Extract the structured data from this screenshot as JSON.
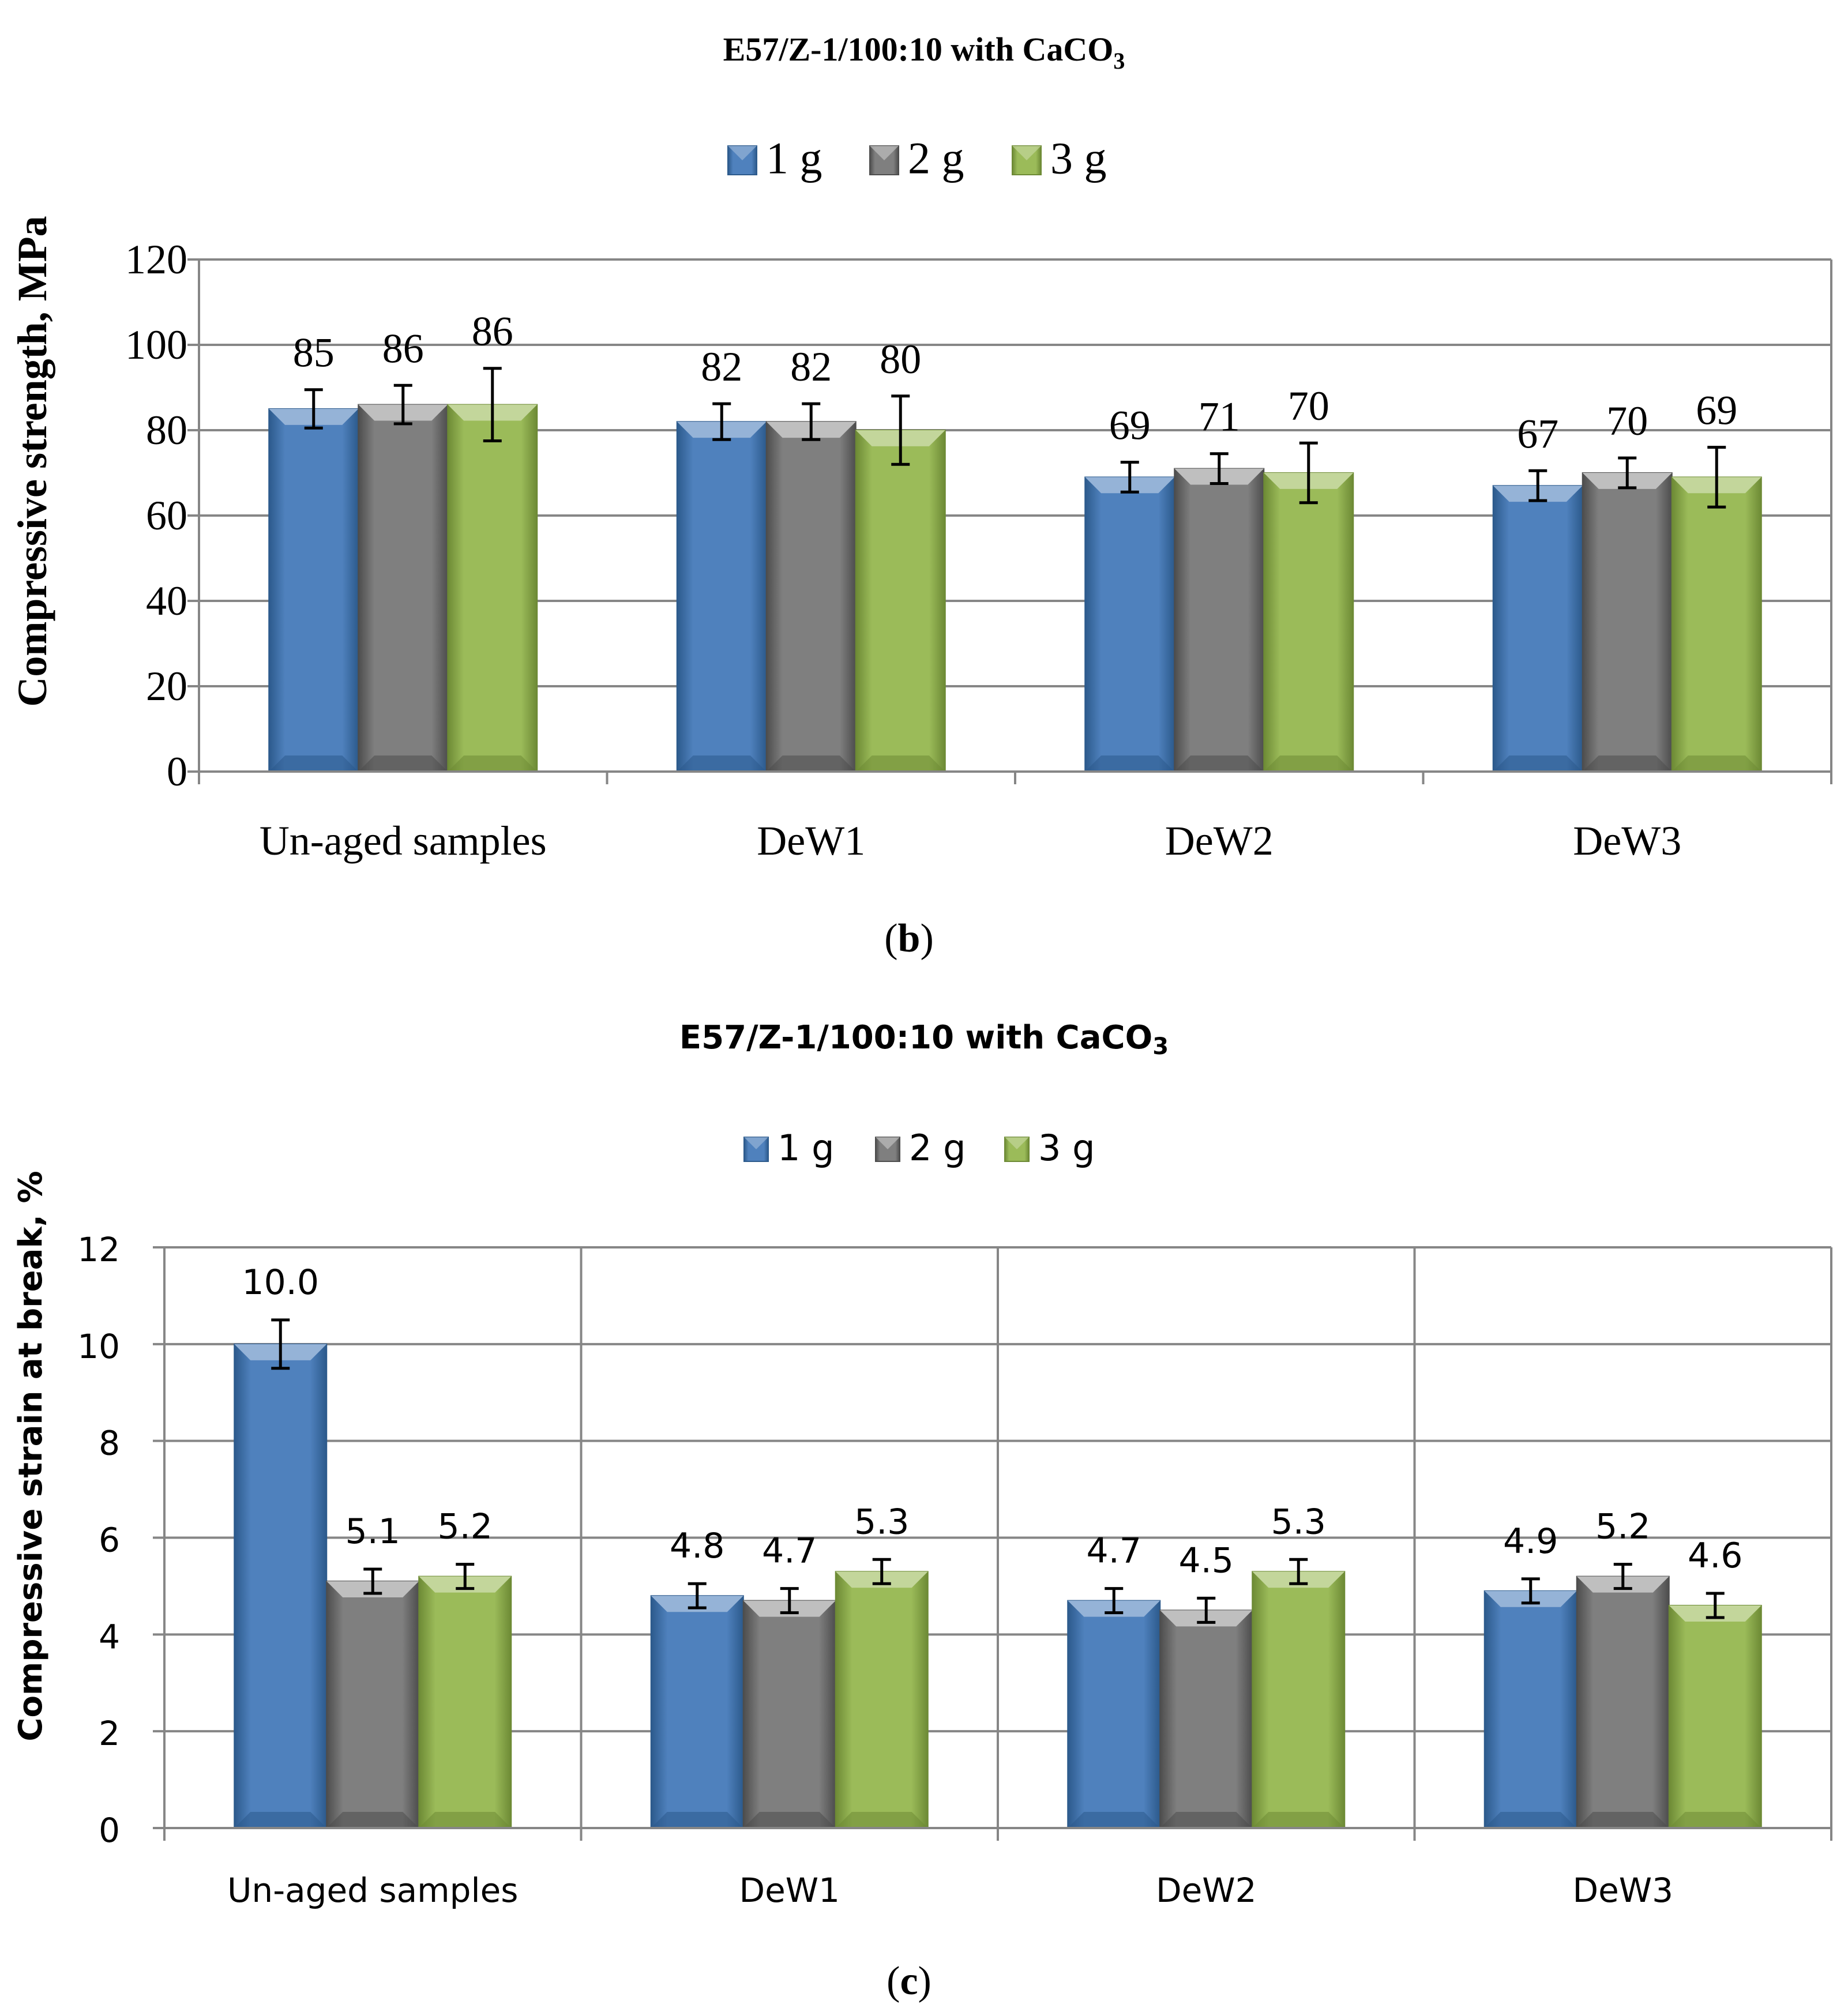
{
  "chart_data": [
    {
      "panel": "b",
      "type": "bar",
      "title": "E57/Z-1/100:10 with CaCO",
      "title_subscript": "3",
      "caption_open": "(",
      "caption_letter": "b",
      "caption_close": ")",
      "xlabel": "",
      "ylabel": "Compressive strength, MPa",
      "ylim": [
        0,
        120
      ],
      "yticks": [
        0,
        20,
        40,
        60,
        80,
        100,
        120
      ],
      "grid": "horizontal",
      "legend_position": "top-center",
      "categories": [
        "Un-aged samples",
        "DeW1",
        "DeW2",
        "DeW3"
      ],
      "series": [
        {
          "name": "1 g",
          "values": [
            85,
            82,
            69,
            67
          ],
          "errors": [
            4.5,
            4.2,
            3.5,
            3.5
          ],
          "labels": [
            "85",
            "82",
            "69",
            "67"
          ]
        },
        {
          "name": "2 g",
          "values": [
            86,
            82,
            71,
            70
          ],
          "errors": [
            4.5,
            4.2,
            3.5,
            3.5
          ],
          "labels": [
            "86",
            "82",
            "71",
            "70"
          ]
        },
        {
          "name": "3 g",
          "values": [
            86,
            80,
            70,
            69
          ],
          "errors": [
            8.5,
            8,
            7,
            7
          ],
          "labels": [
            "86",
            "80",
            "70",
            "69"
          ]
        }
      ]
    },
    {
      "panel": "c",
      "type": "bar",
      "title": "E57/Z-1/100:10 with CaCO",
      "title_subscript": "3",
      "caption_open": "(",
      "caption_letter": "c",
      "caption_close": ")",
      "xlabel": "",
      "ylabel": "Compressive strain at break, %",
      "ylim": [
        0,
        12
      ],
      "yticks": [
        0,
        2,
        4,
        6,
        8,
        10,
        12
      ],
      "grid": "both",
      "legend_position": "top-center",
      "categories": [
        "Un-aged samples",
        "DeW1",
        "DeW2",
        "DeW3"
      ],
      "series": [
        {
          "name": "1 g",
          "values": [
            10.0,
            4.8,
            4.7,
            4.9
          ],
          "errors": [
            0.5,
            0.25,
            0.25,
            0.25
          ],
          "labels": [
            "10.0",
            "4.8",
            "4.7",
            "4.9"
          ]
        },
        {
          "name": "2 g",
          "values": [
            5.1,
            4.7,
            4.5,
            5.2
          ],
          "errors": [
            0.25,
            0.25,
            0.25,
            0.25
          ],
          "labels": [
            "5.1",
            "4.7",
            "4.5",
            "5.2"
          ]
        },
        {
          "name": "3 g",
          "values": [
            5.2,
            5.3,
            5.3,
            4.6
          ],
          "errors": [
            0.25,
            0.25,
            0.25,
            0.25
          ],
          "labels": [
            "5.2",
            "5.3",
            "5.3",
            "4.6"
          ]
        }
      ]
    }
  ],
  "colors": {
    "series": [
      "#4f81bd",
      "#7f7f7f",
      "#9bbb59"
    ],
    "series_light": [
      "#95b3d7",
      "#bfbfbf",
      "#c3d69b"
    ],
    "series_dark": [
      "#2c5a8c",
      "#4d4d4d",
      "#6d8a35"
    ],
    "grid": "#868686",
    "axis": "#868686"
  }
}
